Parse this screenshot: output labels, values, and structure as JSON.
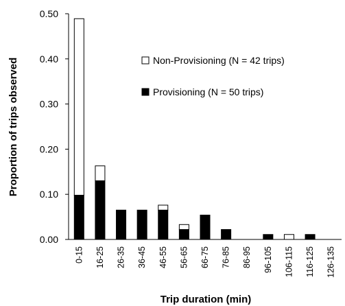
{
  "chart_data": {
    "type": "bar",
    "stacked": true,
    "title": "",
    "xlabel": "Trip duration (min)",
    "ylabel": "Proportion of trips observed",
    "ylim": [
      0,
      0.5
    ],
    "yticks": [
      "0.00",
      "0.10",
      "0.20",
      "0.30",
      "0.40",
      "0.50"
    ],
    "grid": false,
    "legend_position": "upper-right",
    "categories": [
      "0-15",
      "16-25",
      "26-35",
      "36-45",
      "46-55",
      "56-65",
      "66-75",
      "76-85",
      "86-95",
      "96-105",
      "106-115",
      "116-125",
      "126-135"
    ],
    "series": [
      {
        "name": "Provisioning (N = 50 trips)",
        "color": "#000000",
        "values": [
          0.098,
          0.13,
          0.065,
          0.065,
          0.065,
          0.022,
          0.054,
          0.022,
          0.0,
          0.011,
          0.0,
          0.011,
          0.0
        ]
      },
      {
        "name": "Non-Provisioning (N = 42 trips)",
        "color": "#ffffff",
        "values": [
          0.391,
          0.033,
          0.0,
          0.0,
          0.011,
          0.011,
          0.0,
          0.0,
          0.0,
          0.0,
          0.011,
          0.0,
          0.0
        ]
      }
    ]
  }
}
